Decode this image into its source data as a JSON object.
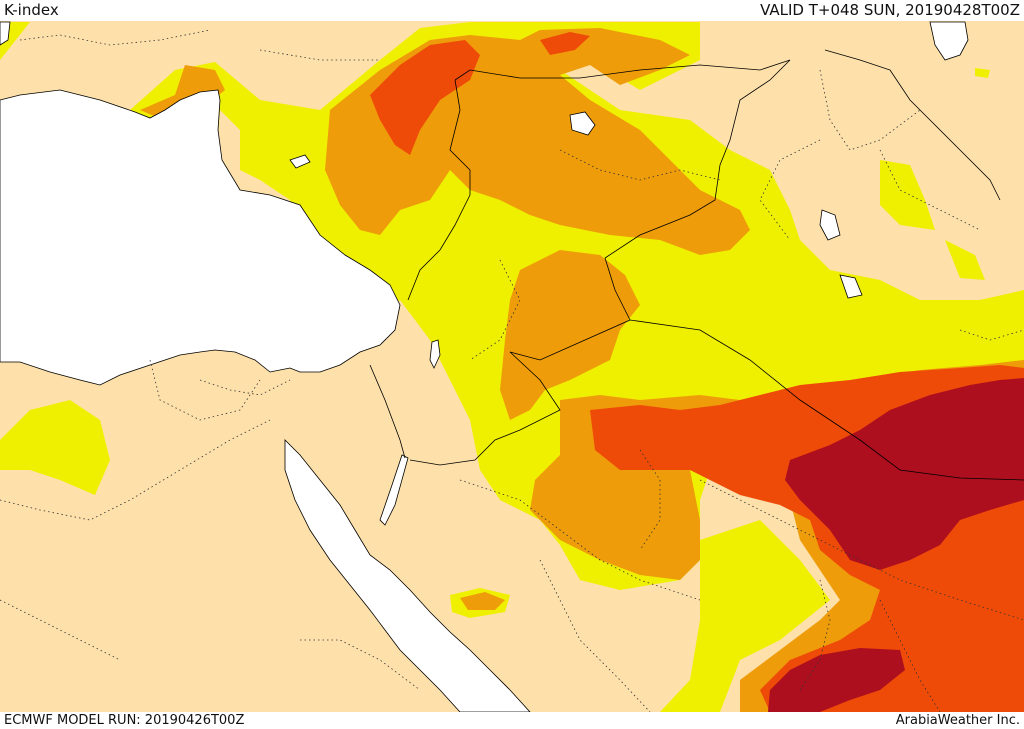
{
  "header": {
    "title": "K-index",
    "valid": "VALID T+048 SUN, 20190428T00Z"
  },
  "footer": {
    "model_run": "ECMWF MODEL RUN: 20190426T00Z",
    "credit": "ArabiaWeather Inc."
  },
  "legend_colors": {
    "land": "#fde0aa",
    "water": "#ffffff",
    "k_low": "#eff000",
    "k_mid": "#ee9c0a",
    "k_high": "#ee4a08",
    "k_very_high": "#ae0f1e"
  }
}
